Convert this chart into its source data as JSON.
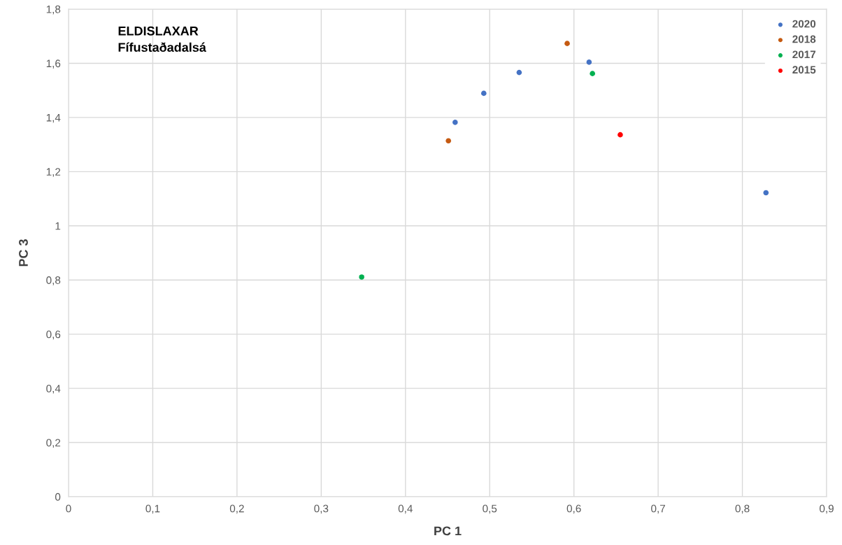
{
  "chart_data": {
    "type": "scatter",
    "title": "ELDISLAXAR\nFífustaðadalsá",
    "xlabel": "PC 1",
    "ylabel": "PC 3",
    "series": [
      {
        "name": "2020",
        "color": "#4472c4",
        "x": [
          0.459,
          0.493,
          0.535,
          0.618,
          0.828
        ],
        "values": [
          1.382,
          1.489,
          1.566,
          1.604,
          1.122
        ]
      },
      {
        "name": "2018",
        "color": "#c55a11",
        "x": [
          0.451,
          0.592
        ],
        "values": [
          1.314,
          1.673
        ]
      },
      {
        "name": "2017",
        "color": "#00b050",
        "x": [
          0.348,
          0.622
        ],
        "values": [
          0.811,
          1.562
        ]
      },
      {
        "name": "2015",
        "color": "#ff0000",
        "x": [
          0.655
        ],
        "values": [
          1.336
        ]
      }
    ],
    "xlim": [
      0,
      0.9
    ],
    "xticks": [
      0,
      {
        "value": 0.1,
        "label": "0,1"
      },
      {
        "value": 0.2,
        "label": "0,2"
      },
      {
        "value": 0.3,
        "label": "0,3"
      },
      {
        "value": 0.4,
        "label": "0,4"
      },
      {
        "value": 0.5,
        "label": "0,5"
      },
      {
        "value": 0.6,
        "label": "0,6"
      },
      {
        "value": 0.7,
        "label": "0,7"
      },
      {
        "value": 0.8,
        "label": "0,8"
      },
      {
        "value": 0.9,
        "label": "0,9"
      }
    ],
    "ylim": [
      0,
      1.8
    ],
    "yticks": [
      0,
      {
        "value": 0.2,
        "label": "0,2"
      },
      {
        "value": 0.4,
        "label": "0,4"
      },
      {
        "value": 0.6,
        "label": "0,6"
      },
      {
        "value": 0.8,
        "label": "0,8"
      },
      1,
      {
        "value": 1.2,
        "label": "1,2"
      },
      {
        "value": 1.4,
        "label": "1,4"
      },
      {
        "value": 1.6,
        "label": "1,6"
      },
      {
        "value": 1.8,
        "label": "1,8"
      }
    ],
    "grid": true,
    "legend": "top right",
    "marker": "circle"
  }
}
